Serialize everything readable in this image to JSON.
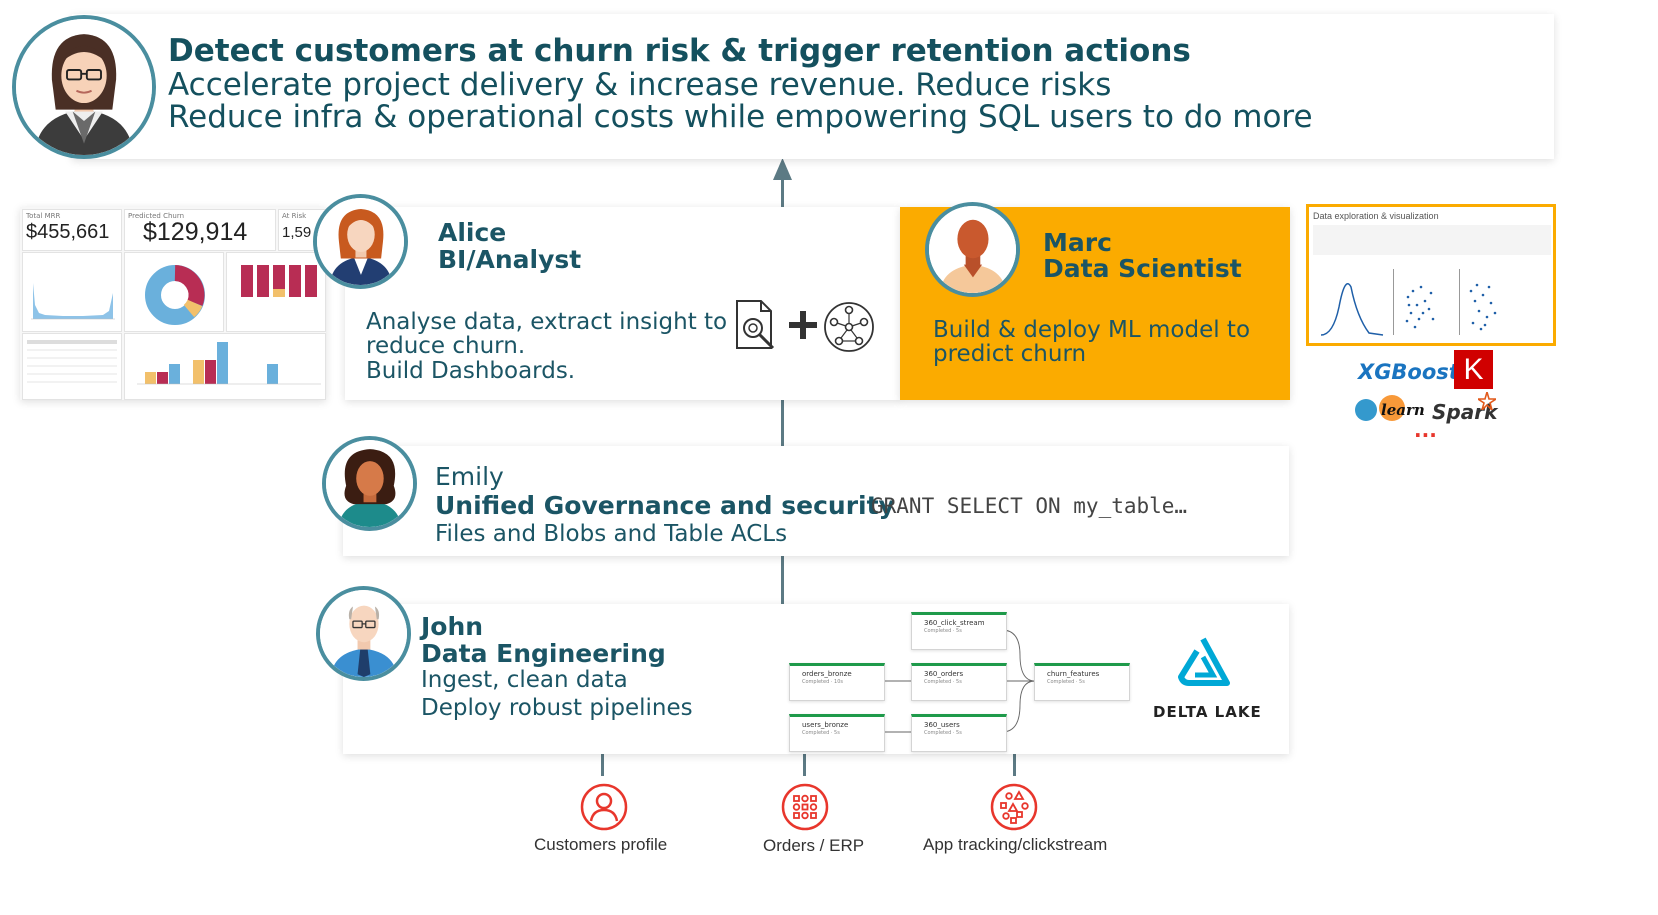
{
  "header": {
    "line1": "Detect customers at churn risk & trigger retention actions",
    "line2": "Accelerate project delivery & increase revenue. Reduce risks",
    "line3": "Reduce infra & operational costs while empowering SQL users to do more"
  },
  "dashboard": {
    "kpi1": "$455,661",
    "kpi2": "$129,914",
    "kpi3": "1,59"
  },
  "alice": {
    "name": "Alice",
    "role": "BI/Analyst",
    "desc1": "Analyse data, extract insight to",
    "desc2": "reduce churn.",
    "desc3": "Build Dashboards."
  },
  "marc": {
    "name": "Marc",
    "role": "Data Scientist",
    "desc1": "Build & deploy ML model to",
    "desc2": "predict churn"
  },
  "notebook": {
    "title": "Data exploration & visualization"
  },
  "ml_libs": {
    "xgboost": "XGBoost",
    "keras": "K",
    "sklearn": "learn",
    "spark": "Spark",
    "more": "..."
  },
  "emily": {
    "name": "Emily",
    "role": "Unified Governance and security",
    "desc": "Files and Blobs and Table ACLs",
    "code": "GRANT SELECT ON my_table…"
  },
  "john": {
    "name": "John",
    "role": "Data Engineering",
    "desc1": "Ingest, clean data",
    "desc2": "Deploy robust pipelines"
  },
  "pipeline": {
    "nodes": [
      "360_click_stream",
      "orders_bronze",
      "360_orders",
      "churn_features",
      "users_bronze",
      "360_users"
    ]
  },
  "delta": {
    "label": "DELTA LAKE"
  },
  "sources": {
    "customers": "Customers profile",
    "orders": "Orders / ERP",
    "app": "App tracking/clickstream"
  },
  "colors": {
    "teal": "#14505e",
    "marc_bg": "#fbab00",
    "source_red": "#e8362c",
    "avatar_border": "#4a8e9f"
  }
}
